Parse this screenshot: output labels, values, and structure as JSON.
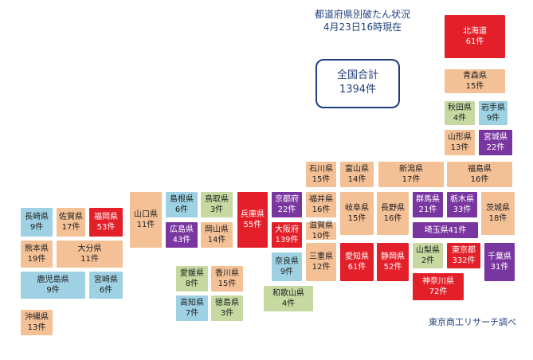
{
  "title": {
    "line1": "都道府県別破たん状況",
    "line2": "4月23日16時現在"
  },
  "total": {
    "label": "全国合計",
    "value": "1394件"
  },
  "source": "東京商工リサーチ調べ",
  "colors": {
    "red": "#e3202a",
    "purple": "#7a36a0",
    "orange": "#f4c096",
    "green": "#c6d9a0",
    "blue": "#9dd1e3"
  },
  "prefectures": [
    {
      "id": "hokkaido",
      "name": "北海道",
      "count": "61件",
      "color": "red"
    },
    {
      "id": "aomori",
      "name": "青森県",
      "count": "15件",
      "color": "orange"
    },
    {
      "id": "akita",
      "name": "秋田県",
      "count": "4件",
      "color": "green"
    },
    {
      "id": "iwate",
      "name": "岩手県",
      "count": "9件",
      "color": "blue"
    },
    {
      "id": "yamagata",
      "name": "山形県",
      "count": "13件",
      "color": "orange"
    },
    {
      "id": "miyagi",
      "name": "宮城県",
      "count": "22件",
      "color": "purple"
    },
    {
      "id": "fukushima",
      "name": "福島県",
      "count": "16件",
      "color": "orange"
    },
    {
      "id": "niigata",
      "name": "新潟県",
      "count": "17件",
      "color": "orange"
    },
    {
      "id": "ishikawa",
      "name": "石川県",
      "count": "15件",
      "color": "orange"
    },
    {
      "id": "toyama",
      "name": "富山県",
      "count": "14件",
      "color": "orange"
    },
    {
      "id": "fukui",
      "name": "福井県",
      "count": "16件",
      "color": "orange"
    },
    {
      "id": "nagano",
      "name": "長野県",
      "count": "16件",
      "color": "orange"
    },
    {
      "id": "gifu",
      "name": "岐阜県",
      "count": "15件",
      "color": "orange"
    },
    {
      "id": "gunma",
      "name": "群馬県",
      "count": "21件",
      "color": "purple"
    },
    {
      "id": "tochigi",
      "name": "栃木県",
      "count": "33件",
      "color": "purple"
    },
    {
      "id": "ibaraki",
      "name": "茨城県",
      "count": "18件",
      "color": "orange"
    },
    {
      "id": "saitama",
      "name": "埼玉県",
      "count": "41件",
      "color": "purple"
    },
    {
      "id": "yamanashi",
      "name": "山梨県",
      "count": "2件",
      "color": "green"
    },
    {
      "id": "tokyo",
      "name": "東京都",
      "count": "332件",
      "color": "red"
    },
    {
      "id": "chiba",
      "name": "千葉県",
      "count": "31件",
      "color": "purple"
    },
    {
      "id": "kanagawa",
      "name": "神奈川県",
      "count": "72件",
      "color": "red"
    },
    {
      "id": "shizuoka",
      "name": "静岡県",
      "count": "52件",
      "color": "red"
    },
    {
      "id": "aichi",
      "name": "愛知県",
      "count": "61件",
      "color": "red"
    },
    {
      "id": "mie",
      "name": "三重県",
      "count": "12件",
      "color": "orange"
    },
    {
      "id": "shiga",
      "name": "滋賀県",
      "count": "10件",
      "color": "orange"
    },
    {
      "id": "kyoto",
      "name": "京都府",
      "count": "22件",
      "color": "purple"
    },
    {
      "id": "osaka",
      "name": "大阪府",
      "count": "139件",
      "color": "red"
    },
    {
      "id": "nara",
      "name": "奈良県",
      "count": "9件",
      "color": "blue"
    },
    {
      "id": "wakayama",
      "name": "和歌山県",
      "count": "4件",
      "color": "green"
    },
    {
      "id": "hyogo",
      "name": "兵庫県",
      "count": "55件",
      "color": "red"
    },
    {
      "id": "tottori",
      "name": "鳥取県",
      "count": "3件",
      "color": "green"
    },
    {
      "id": "shimane",
      "name": "島根県",
      "count": "6件",
      "color": "blue"
    },
    {
      "id": "okayama",
      "name": "岡山県",
      "count": "14件",
      "color": "orange"
    },
    {
      "id": "hiroshima",
      "name": "広島県",
      "count": "43件",
      "color": "purple"
    },
    {
      "id": "yamaguchi",
      "name": "山口県",
      "count": "11件",
      "color": "orange"
    },
    {
      "id": "kagawa",
      "name": "香川県",
      "count": "15件",
      "color": "orange"
    },
    {
      "id": "ehime",
      "name": "愛媛県",
      "count": "8件",
      "color": "green"
    },
    {
      "id": "tokushima",
      "name": "徳島県",
      "count": "3件",
      "color": "green"
    },
    {
      "id": "kochi",
      "name": "高知県",
      "count": "7件",
      "color": "blue"
    },
    {
      "id": "fukuoka",
      "name": "福岡県",
      "count": "53件",
      "color": "red"
    },
    {
      "id": "saga",
      "name": "佐賀県",
      "count": "17件",
      "color": "orange"
    },
    {
      "id": "nagasaki",
      "name": "長崎県",
      "count": "9件",
      "color": "blue"
    },
    {
      "id": "kumamoto",
      "name": "熊本県",
      "count": "19件",
      "color": "orange"
    },
    {
      "id": "oita",
      "name": "大分県",
      "count": "11件",
      "color": "orange"
    },
    {
      "id": "miyazaki",
      "name": "宮崎県",
      "count": "6件",
      "color": "blue"
    },
    {
      "id": "kagoshima",
      "name": "鹿児島県",
      "count": "9件",
      "color": "blue"
    },
    {
      "id": "okinawa",
      "name": "沖縄県",
      "count": "13件",
      "color": "orange"
    }
  ]
}
